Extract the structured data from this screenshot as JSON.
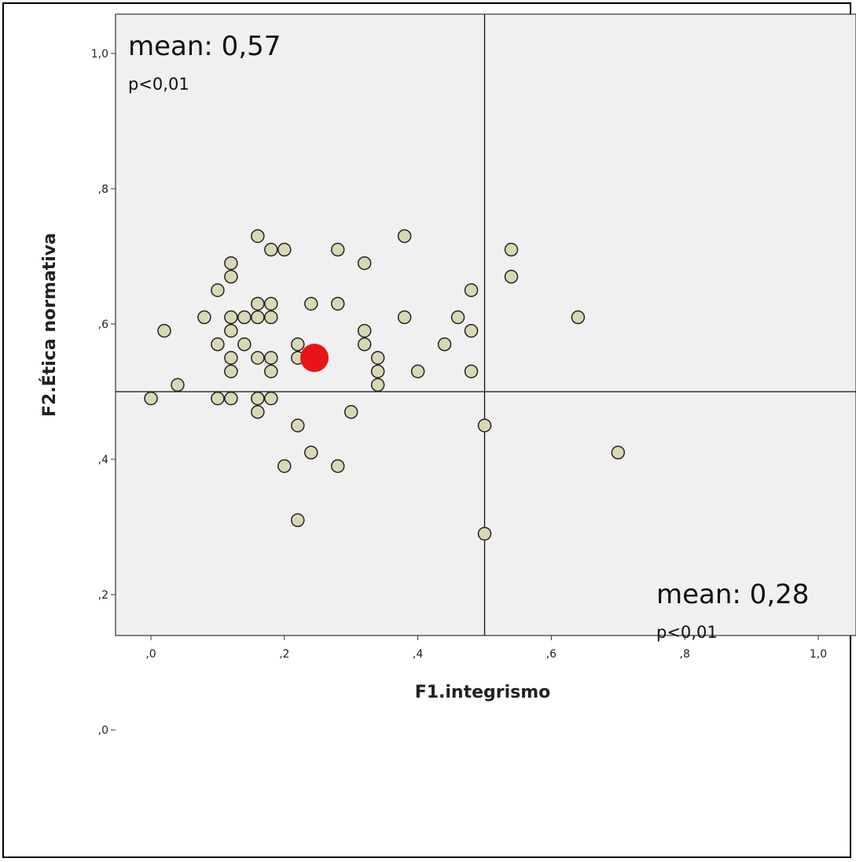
{
  "chart_data": {
    "type": "scatter",
    "title": "",
    "xlabel": "F1.integrismo",
    "ylabel": "F2.Ética normativa",
    "xlim": [
      -0.05,
      1.05
    ],
    "ylim": [
      -0.05,
      1.05
    ],
    "x_ticks": [
      0.0,
      0.2,
      0.4,
      0.6,
      0.8,
      1.0
    ],
    "x_tick_labels": [
      ",0",
      ",2",
      ",4",
      ",6",
      ",8",
      "1,0"
    ],
    "y_ticks": [
      0.0,
      0.2,
      0.4,
      0.6,
      0.8,
      1.0
    ],
    "y_tick_labels": [
      ",0",
      ",2",
      ",4",
      ",6",
      ",8",
      "1,0"
    ],
    "grid": false,
    "reference_lines": {
      "x": 0.5,
      "y": 0.5
    },
    "colors": {
      "point_fill": "#d9d8b4",
      "point_stroke": "#222222",
      "highlight": "#e8141a",
      "background": "#f0f0f0"
    },
    "points": [
      {
        "x": 0.0,
        "y": 0.49
      },
      {
        "x": 0.02,
        "y": 0.59
      },
      {
        "x": 0.04,
        "y": 0.51
      },
      {
        "x": 0.08,
        "y": 0.61
      },
      {
        "x": 0.1,
        "y": 0.65
      },
      {
        "x": 0.1,
        "y": 0.57
      },
      {
        "x": 0.1,
        "y": 0.49
      },
      {
        "x": 0.12,
        "y": 0.69
      },
      {
        "x": 0.12,
        "y": 0.67
      },
      {
        "x": 0.12,
        "y": 0.61
      },
      {
        "x": 0.12,
        "y": 0.59
      },
      {
        "x": 0.12,
        "y": 0.55
      },
      {
        "x": 0.12,
        "y": 0.53
      },
      {
        "x": 0.12,
        "y": 0.49
      },
      {
        "x": 0.14,
        "y": 0.61
      },
      {
        "x": 0.14,
        "y": 0.57
      },
      {
        "x": 0.16,
        "y": 0.73
      },
      {
        "x": 0.16,
        "y": 0.63
      },
      {
        "x": 0.16,
        "y": 0.61
      },
      {
        "x": 0.16,
        "y": 0.55
      },
      {
        "x": 0.16,
        "y": 0.49
      },
      {
        "x": 0.16,
        "y": 0.47
      },
      {
        "x": 0.18,
        "y": 0.71
      },
      {
        "x": 0.18,
        "y": 0.63
      },
      {
        "x": 0.18,
        "y": 0.61
      },
      {
        "x": 0.18,
        "y": 0.55
      },
      {
        "x": 0.18,
        "y": 0.53
      },
      {
        "x": 0.18,
        "y": 0.49
      },
      {
        "x": 0.2,
        "y": 0.71
      },
      {
        "x": 0.2,
        "y": 0.39
      },
      {
        "x": 0.22,
        "y": 0.57
      },
      {
        "x": 0.22,
        "y": 0.55
      },
      {
        "x": 0.22,
        "y": 0.45
      },
      {
        "x": 0.22,
        "y": 0.31
      },
      {
        "x": 0.24,
        "y": 0.63
      },
      {
        "x": 0.24,
        "y": 0.41
      },
      {
        "x": 0.28,
        "y": 0.71
      },
      {
        "x": 0.28,
        "y": 0.63
      },
      {
        "x": 0.28,
        "y": 0.39
      },
      {
        "x": 0.3,
        "y": 0.47
      },
      {
        "x": 0.32,
        "y": 0.69
      },
      {
        "x": 0.32,
        "y": 0.59
      },
      {
        "x": 0.32,
        "y": 0.57
      },
      {
        "x": 0.34,
        "y": 0.55
      },
      {
        "x": 0.34,
        "y": 0.53
      },
      {
        "x": 0.34,
        "y": 0.51
      },
      {
        "x": 0.38,
        "y": 0.73
      },
      {
        "x": 0.38,
        "y": 0.61
      },
      {
        "x": 0.4,
        "y": 0.53
      },
      {
        "x": 0.44,
        "y": 0.57
      },
      {
        "x": 0.46,
        "y": 0.61
      },
      {
        "x": 0.48,
        "y": 0.65
      },
      {
        "x": 0.48,
        "y": 0.59
      },
      {
        "x": 0.48,
        "y": 0.53
      },
      {
        "x": 0.5,
        "y": 0.45
      },
      {
        "x": 0.5,
        "y": 0.29
      },
      {
        "x": 0.54,
        "y": 0.71
      },
      {
        "x": 0.54,
        "y": 0.67
      },
      {
        "x": 0.64,
        "y": 0.61
      },
      {
        "x": 0.7,
        "y": 0.41
      }
    ],
    "highlight_point": {
      "x": 0.245,
      "y": 0.55
    },
    "annotations": [
      {
        "text": "mean: 0,57",
        "sub": "p<0,01",
        "placement": "top-left"
      },
      {
        "text": "mean: 0,28",
        "sub": "p<0,01",
        "placement": "bottom-right"
      }
    ]
  }
}
